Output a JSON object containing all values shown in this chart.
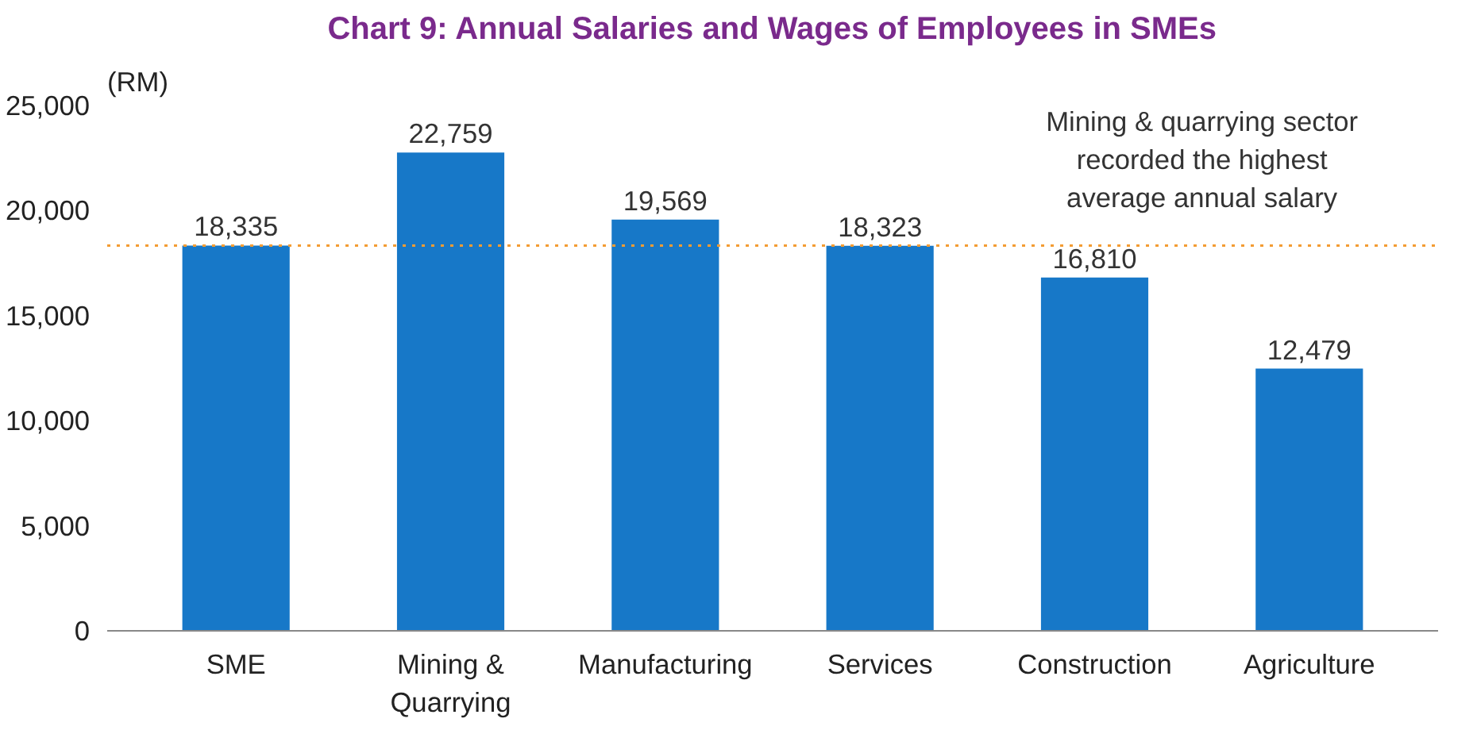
{
  "chart_data": {
    "type": "bar",
    "title": "Chart 9: Annual Salaries and Wages of Employees in SMEs",
    "ylabel": "(RM)",
    "categories": [
      "SME",
      "Mining & Quarrying",
      "Manufacturing",
      "Services",
      "Construction",
      "Agriculture"
    ],
    "values": [
      18335,
      22759,
      19569,
      18323,
      16810,
      12479
    ],
    "color": "#1778c8",
    "value_labels": [
      "18,335",
      "22,759",
      "19,569",
      "18,323",
      "16,810",
      "12,479"
    ],
    "ylim": [
      0,
      25000
    ],
    "yticks": [
      0,
      {
        "value": 5000,
        "label": "5,000"
      },
      {
        "value": 10000,
        "label": "10,000"
      },
      {
        "value": 15000,
        "label": "15,000"
      },
      {
        "value": 20000,
        "label": "20,000"
      },
      {
        "value": 25000,
        "label": "25,000"
      }
    ],
    "ref_lines": [
      {
        "axis": "y",
        "value": 18335,
        "color": "#f39c33",
        "line_style": "dotted"
      }
    ],
    "annotations": [
      "Mining & quarrying sector recorded the highest average annual salary"
    ],
    "grid": false
  }
}
